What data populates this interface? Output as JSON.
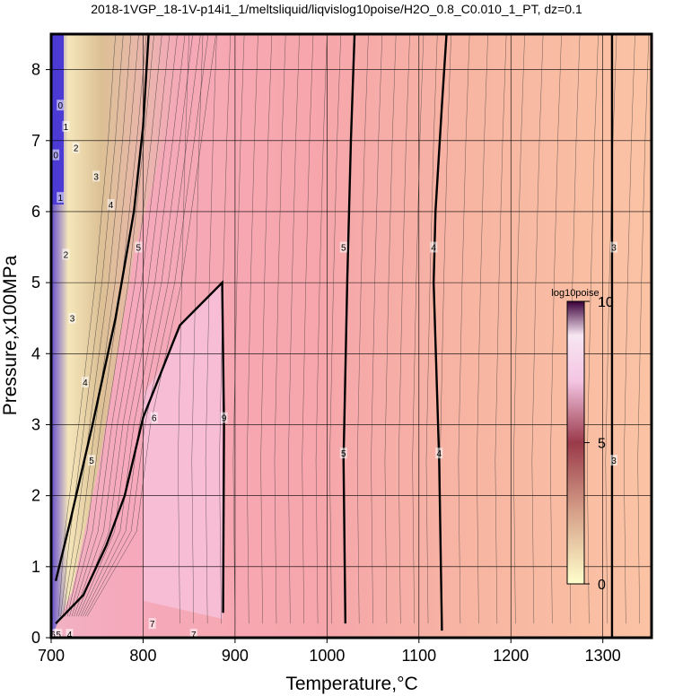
{
  "chart_data": {
    "type": "heatmap",
    "title": "2018-1VGP_18-1V-p14i1_1/meltsliquid/liqvislog10poise/H2O_0.8_C0.010_1_PT, dz=0.1",
    "xlabel": "Temperature,°C",
    "ylabel": "Pressure,x100MPa",
    "xlim": [
      700,
      1353
    ],
    "ylim": [
      0,
      8.5
    ],
    "x_ticks": [
      700,
      800,
      900,
      1000,
      1100,
      1200,
      1300
    ],
    "y_ticks": [
      0,
      1,
      2,
      3,
      4,
      5,
      6,
      7,
      8
    ],
    "grid": true,
    "colorbar": {
      "label": "log10poise",
      "range": [
        0,
        10
      ],
      "ticks": [
        0,
        5,
        10
      ],
      "colors": [
        "#ffffcc",
        "#7a1f2e",
        "#ffffff",
        "#3a003a"
      ],
      "position": "right-inside"
    },
    "contour_interval": 0.1,
    "labeled_contours": [
      {
        "level": 3,
        "points": [
          [
            1310,
            0
          ],
          [
            1310,
            8.5
          ]
        ]
      },
      {
        "level": 4,
        "points": [
          [
            1125,
            0.1
          ],
          [
            1122,
            2.5
          ],
          [
            1116,
            5.0
          ],
          [
            1118,
            6.0
          ],
          [
            1125,
            7.5
          ],
          [
            1130,
            8.5
          ]
        ]
      },
      {
        "level": 5,
        "points": [
          [
            1020,
            0.2
          ],
          [
            1018,
            2.5
          ],
          [
            1022,
            5.0
          ],
          [
            1026,
            7.0
          ],
          [
            1030,
            8.5
          ]
        ]
      },
      {
        "level": 9,
        "points": [
          [
            887,
            0.35
          ],
          [
            888,
            3.0
          ],
          [
            886,
            5.0
          ],
          [
            840,
            4.4
          ],
          [
            800,
            3.1
          ],
          [
            780,
            2.0
          ],
          [
            760,
            1.3
          ],
          [
            735,
            0.6
          ],
          [
            705,
            0.2
          ]
        ]
      },
      {
        "level": 6,
        "points": [
          [
            705,
            0.8
          ],
          [
            720,
            1.6
          ],
          [
            745,
            3.0
          ],
          [
            770,
            4.5
          ],
          [
            790,
            6.0
          ],
          [
            800,
            7.2
          ],
          [
            806,
            8.5
          ]
        ]
      }
    ],
    "contour_labels": [
      {
        "text": "3",
        "x": 1312,
        "y": 5.5
      },
      {
        "text": "3",
        "x": 1312,
        "y": 2.5
      },
      {
        "text": "4",
        "x": 1116,
        "y": 5.5
      },
      {
        "text": "4",
        "x": 1122,
        "y": 2.6
      },
      {
        "text": "5",
        "x": 1018,
        "y": 5.5
      },
      {
        "text": "5",
        "x": 1018,
        "y": 2.6
      },
      {
        "text": "9",
        "x": 888,
        "y": 3.1
      },
      {
        "text": "6",
        "x": 812,
        "y": 3.1
      },
      {
        "text": "5",
        "x": 795,
        "y": 5.5
      },
      {
        "text": "4",
        "x": 765,
        "y": 6.1
      },
      {
        "text": "3",
        "x": 749,
        "y": 6.5
      },
      {
        "text": "2",
        "x": 727,
        "y": 6.9
      },
      {
        "text": "1",
        "x": 716,
        "y": 7.2
      },
      {
        "text": "0",
        "x": 710,
        "y": 7.5
      },
      {
        "text": "0",
        "x": 705,
        "y": 6.8
      },
      {
        "text": "1",
        "x": 710,
        "y": 6.2
      },
      {
        "text": "2",
        "x": 716,
        "y": 5.4
      },
      {
        "text": "3",
        "x": 723,
        "y": 4.5
      },
      {
        "text": "4",
        "x": 737,
        "y": 3.6
      },
      {
        "text": "5",
        "x": 744,
        "y": 2.5
      },
      {
        "text": "7",
        "x": 810,
        "y": 0.2
      },
      {
        "text": "7",
        "x": 855,
        "y": 0.05
      },
      {
        "text": "4",
        "x": 720,
        "y": 0.05
      },
      {
        "text": "5",
        "x": 708,
        "y": 0.05
      },
      {
        "text": "6",
        "x": 702,
        "y": 0.05
      }
    ]
  }
}
